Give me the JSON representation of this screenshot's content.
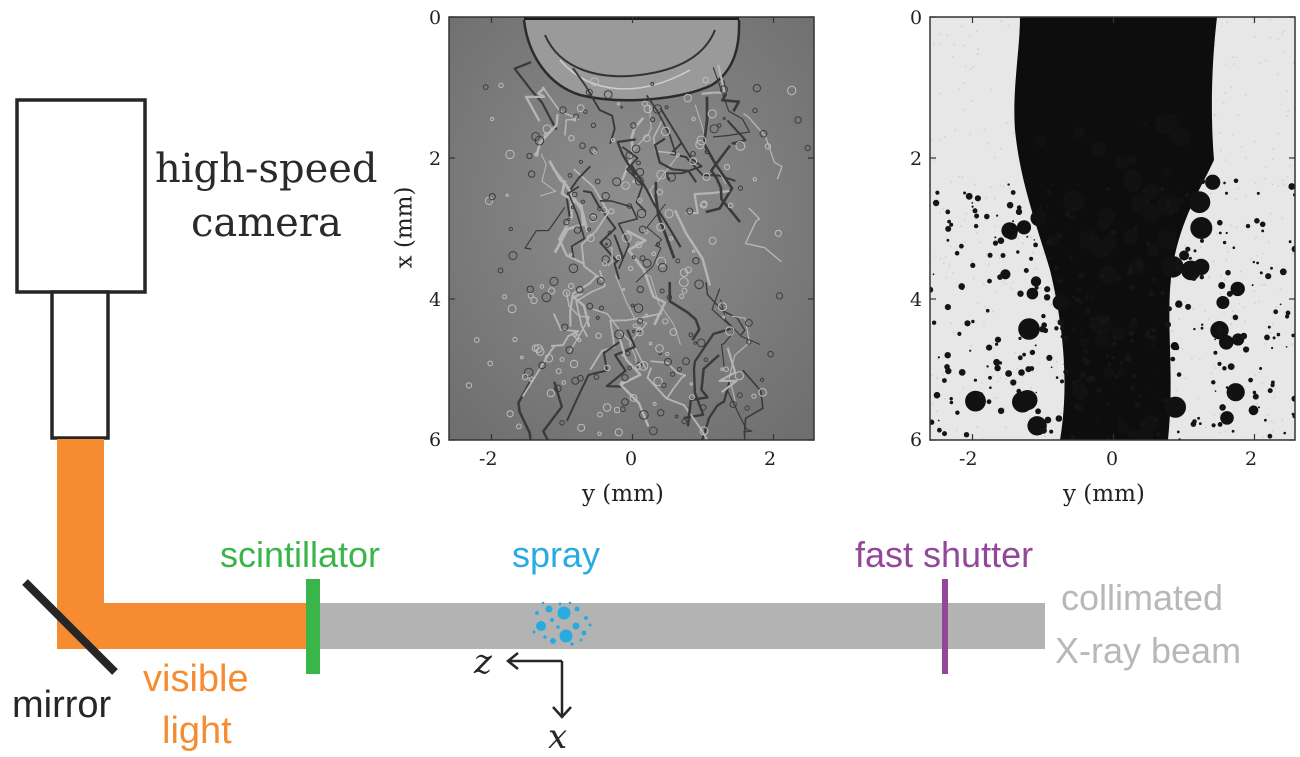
{
  "camera": {
    "line1": "high-speed",
    "line2": "camera"
  },
  "labels": {
    "mirror": "mirror",
    "visible_line1": "visible",
    "visible_line2": "light",
    "scintillator": "scintillator",
    "spray": "spray",
    "fast_shutter": "fast shutter",
    "beam_line1": "collimated",
    "beam_line2": "X-ray beam",
    "axis_z": "z",
    "axis_x": "x"
  },
  "colors": {
    "light": "#f58c31",
    "scintillator": "#39b54a",
    "spray": "#29abe2",
    "shutter": "#93479b",
    "beam": "#b3b3b3",
    "beam_text": "#b8b8b8",
    "dark": "#262626"
  },
  "panels": [
    {
      "name": "phase-contrast-image",
      "xlabel": "y (mm)",
      "ylabel": "x (mm)",
      "xticks": [
        "-2",
        "0",
        "2"
      ],
      "yticks": [
        "0",
        "2",
        "4",
        "6"
      ]
    },
    {
      "name": "absorption-image",
      "xlabel": "y (mm)",
      "ylabel": "",
      "xticks": [
        "-2",
        "0",
        "2"
      ],
      "yticks": [
        "0",
        "2",
        "4",
        "6"
      ]
    }
  ]
}
